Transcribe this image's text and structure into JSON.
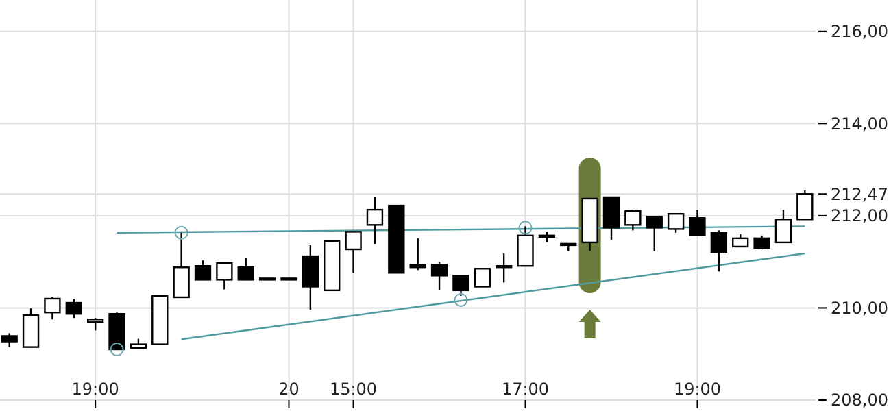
{
  "chart_data": {
    "type": "candlestick",
    "categories": [
      null,
      null,
      null,
      null,
      "19:00",
      null,
      null,
      null,
      null,
      null,
      null,
      null,
      null,
      "20",
      null,
      null,
      "15:00",
      null,
      null,
      null,
      null,
      null,
      null,
      null,
      "17:00",
      null,
      null,
      null,
      null,
      null,
      null,
      null,
      "19:00",
      null,
      null,
      null,
      null,
      null
    ],
    "ohlc": [
      [
        209.39,
        209.45,
        209.15,
        209.27
      ],
      [
        209.15,
        209.99,
        209.15,
        209.84
      ],
      [
        209.9,
        210.23,
        209.75,
        210.2
      ],
      [
        210.11,
        210.2,
        209.78,
        209.87
      ],
      [
        209.69,
        209.78,
        209.51,
        209.75
      ],
      [
        209.87,
        209.9,
        209.1,
        209.1
      ],
      [
        209.13,
        209.33,
        209.13,
        209.21
      ],
      [
        209.21,
        210.26,
        209.21,
        210.26
      ],
      [
        210.23,
        211.63,
        210.23,
        210.88
      ],
      [
        210.91,
        211.03,
        210.61,
        210.61
      ],
      [
        210.61,
        210.97,
        210.4,
        210.97
      ],
      [
        210.88,
        211.09,
        210.61,
        210.61
      ],
      [
        210.64,
        210.64,
        210.64,
        210.64
      ],
      [
        210.64,
        210.64,
        210.64,
        210.64
      ],
      [
        211.12,
        211.36,
        209.96,
        210.46
      ],
      [
        210.38,
        211.45,
        210.38,
        211.45
      ],
      [
        211.27,
        211.65,
        210.76,
        211.65
      ],
      [
        211.8,
        212.4,
        211.39,
        212.13
      ],
      [
        212.22,
        212.22,
        210.76,
        210.76
      ],
      [
        210.94,
        211.51,
        210.82,
        210.88
      ],
      [
        210.94,
        211.0,
        210.38,
        210.7
      ],
      [
        210.7,
        210.7,
        210.26,
        210.38
      ],
      [
        210.46,
        210.85,
        210.46,
        210.85
      ],
      [
        210.91,
        211.18,
        210.55,
        210.88
      ],
      [
        210.91,
        211.77,
        210.91,
        211.57
      ],
      [
        211.57,
        211.65,
        211.42,
        211.57
      ],
      [
        211.39,
        211.39,
        211.24,
        211.39
      ],
      [
        211.42,
        212.37,
        211.24,
        212.37
      ],
      [
        212.4,
        212.4,
        211.48,
        211.74
      ],
      [
        211.8,
        212.13,
        211.68,
        212.1
      ],
      [
        211.98,
        211.98,
        211.24,
        211.74
      ],
      [
        211.71,
        212.04,
        211.63,
        212.04
      ],
      [
        211.95,
        212.13,
        211.57,
        211.57
      ],
      [
        211.63,
        211.68,
        210.79,
        211.21
      ],
      [
        211.33,
        211.6,
        211.33,
        211.51
      ],
      [
        211.51,
        211.57,
        211.27,
        211.3
      ],
      [
        211.42,
        212.13,
        211.42,
        211.92
      ],
      [
        211.92,
        212.55,
        211.92,
        212.47
      ]
    ],
    "series": [
      {
        "type": "line",
        "color": "#4f9a9e",
        "values": [
          null,
          null,
          null,
          null,
          null,
          211.63,
          null,
          null,
          null,
          null,
          null,
          null,
          null,
          null,
          null,
          null,
          null,
          null,
          null,
          null,
          null,
          null,
          null,
          null,
          null,
          null,
          null,
          null,
          null,
          null,
          null,
          null,
          null,
          null,
          null,
          null,
          null,
          211.77
        ]
      },
      {
        "type": "line",
        "color": "#4f9a9e",
        "values": [
          null,
          null,
          null,
          null,
          null,
          null,
          null,
          null,
          209.32,
          null,
          null,
          null,
          null,
          null,
          null,
          null,
          null,
          null,
          null,
          null,
          null,
          null,
          null,
          null,
          null,
          null,
          null,
          null,
          null,
          null,
          null,
          null,
          null,
          null,
          null,
          null,
          null,
          211.18
        ]
      },
      {
        "type": "scatter",
        "color": "#6aaab0",
        "marker": "circle",
        "values": [
          null,
          null,
          null,
          null,
          null,
          209.1,
          null,
          null,
          211.63,
          null,
          null,
          null,
          null,
          null,
          null,
          null,
          null,
          null,
          null,
          null,
          null,
          210.17,
          null,
          null,
          211.74,
          null,
          null,
          null,
          null,
          null,
          null,
          null,
          null,
          null,
          null,
          null,
          null,
          null
        ]
      }
    ],
    "ylim": [
      208,
      216.68
    ],
    "yticks": [
      {
        "value": 208,
        "label": "208,00"
      },
      {
        "value": 210,
        "label": "210,00"
      },
      {
        "value": 212,
        "label": "212,00"
      },
      {
        "value": 212.47,
        "label": "212,47"
      },
      {
        "value": 214,
        "label": "214,00"
      },
      {
        "value": 216,
        "label": "216,00"
      }
    ],
    "grid": true
  }
}
